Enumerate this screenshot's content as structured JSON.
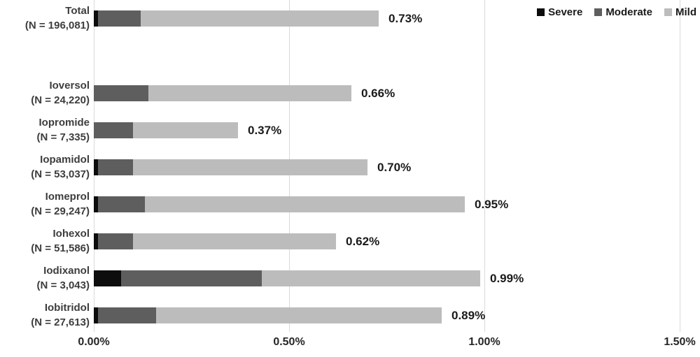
{
  "chart_data": {
    "type": "bar",
    "orientation": "horizontal",
    "stacked": true,
    "title": "",
    "xlabel": "",
    "ylabel": "",
    "xlim": [
      0,
      1.5
    ],
    "grid": "vertical",
    "x_ticks": [
      {
        "value": 0.0,
        "label": "0.00%"
      },
      {
        "value": 0.5,
        "label": "0.50%"
      },
      {
        "value": 1.0,
        "label": "1.00%"
      },
      {
        "value": 1.5,
        "label": "1.50%"
      }
    ],
    "legend": {
      "position": "top-right",
      "entries": [
        {
          "label": "Severe",
          "color": "#0d0d0d"
        },
        {
          "label": "Moderate",
          "color": "#5e5e5e"
        },
        {
          "label": "Mild",
          "color": "#bcbcbc"
        }
      ]
    },
    "categories": [
      {
        "name": "Total",
        "n_label": "(N = 196,081)",
        "total_label": "0.73%"
      },
      {
        "name": "Ioversol",
        "n_label": "(N = 24,220)",
        "total_label": "0.66%"
      },
      {
        "name": "Iopromide",
        "n_label": "(N = 7,335)",
        "total_label": "0.37%"
      },
      {
        "name": "Iopamidol",
        "n_label": "(N = 53,037)",
        "total_label": "0.70%"
      },
      {
        "name": "Iomeprol",
        "n_label": "(N = 29,247)",
        "total_label": "0.95%"
      },
      {
        "name": "Iohexol",
        "n_label": "(N = 51,586)",
        "total_label": "0.62%"
      },
      {
        "name": "Iodixanol",
        "n_label": "(N = 3,043)",
        "total_label": "0.99%"
      },
      {
        "name": "Iobitridol",
        "n_label": "(N = 27,613)",
        "total_label": "0.89%"
      }
    ],
    "series": [
      {
        "name": "Severe",
        "color": "#0d0d0d",
        "values": [
          0.01,
          0.0,
          0.0,
          0.01,
          0.01,
          0.01,
          0.07,
          0.01
        ]
      },
      {
        "name": "Moderate",
        "color": "#5e5e5e",
        "values": [
          0.11,
          0.14,
          0.1,
          0.09,
          0.12,
          0.09,
          0.36,
          0.15
        ]
      },
      {
        "name": "Mild",
        "color": "#bcbcbc",
        "values": [
          0.61,
          0.52,
          0.27,
          0.6,
          0.82,
          0.52,
          0.56,
          0.73
        ]
      }
    ],
    "totals_shown": [
      "0.73%",
      "0.66%",
      "0.37%",
      "0.70%",
      "0.95%",
      "0.62%",
      "0.99%",
      "0.89%"
    ]
  },
  "colors": {
    "background": "#ffffff",
    "gridline": "#d9d9d9",
    "category_label": "#3d3d3d",
    "value_label": "#1a1a1a",
    "axis_tick_label": "#262626",
    "legend_label": "#1a1a1a"
  }
}
